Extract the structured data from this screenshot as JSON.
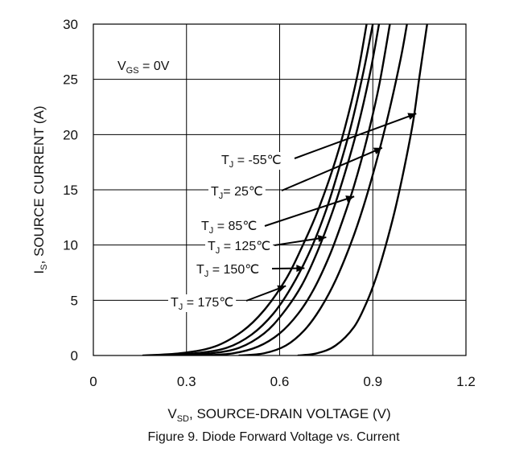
{
  "chart_data": {
    "type": "line",
    "title": "",
    "caption": "Figure 9. Diode Forward Voltage vs. Current",
    "xlabel": {
      "main": "V",
      "sub": "SD",
      "rest": ", SOURCE-DRAIN VOLTAGE (V)"
    },
    "ylabel": {
      "main": "I",
      "sub": "S",
      "rest": ", SOURCE CURRENT (A)"
    },
    "xlim": [
      0,
      1.2
    ],
    "ylim": [
      0,
      30
    ],
    "xticks": [
      "0",
      "0.3",
      "0.6",
      "0.9",
      "1.2"
    ],
    "yticks": [
      "0",
      "5",
      "10",
      "15",
      "20",
      "25",
      "30"
    ],
    "grid": true,
    "condition": {
      "main": "V",
      "sub": "GS",
      "rest": " = 0V"
    },
    "series": [
      {
        "name": "T_J = -55℃",
        "label_parts": {
          "main": "T",
          "sub": "J",
          "rest": " = -55℃"
        },
        "x": [
          0.66,
          0.72,
          0.78,
          0.84,
          0.88,
          0.91,
          0.94,
          0.97,
          1.0,
          1.03,
          1.05,
          1.075
        ],
        "y": [
          0,
          0.2,
          0.9,
          2.6,
          4.8,
          7.0,
          9.8,
          13.0,
          16.8,
          21.2,
          25.2,
          30
        ]
      },
      {
        "name": "T_J= 25℃",
        "label_parts": {
          "main": "T",
          "sub": "J",
          "rest": "= 25℃"
        },
        "x": [
          0.47,
          0.55,
          0.62,
          0.68,
          0.73,
          0.78,
          0.83,
          0.87,
          0.91,
          0.95,
          0.99,
          1.01
        ],
        "y": [
          0,
          0.2,
          0.9,
          2.3,
          4.2,
          6.8,
          10.2,
          13.5,
          17.4,
          21.8,
          26.9,
          30
        ]
      },
      {
        "name": "T_J = 85℃",
        "label_parts": {
          "main": "T",
          "sub": "J",
          "rest": " = 85℃"
        },
        "x": [
          0.35,
          0.45,
          0.53,
          0.6,
          0.66,
          0.71,
          0.76,
          0.8,
          0.84,
          0.88,
          0.92,
          0.955
        ],
        "y": [
          0,
          0.2,
          0.8,
          2.0,
          3.8,
          6.0,
          9.0,
          12.0,
          15.4,
          19.5,
          24.4,
          30
        ]
      },
      {
        "name": "T_J = 125℃",
        "label_parts": {
          "main": "T",
          "sub": "J",
          "rest": " = 125℃"
        },
        "x": [
          0.27,
          0.38,
          0.47,
          0.55,
          0.61,
          0.67,
          0.72,
          0.77,
          0.81,
          0.85,
          0.89,
          0.92
        ],
        "y": [
          0,
          0.2,
          0.7,
          2.0,
          3.8,
          6.3,
          9.3,
          13.0,
          16.5,
          20.5,
          25.4,
          30
        ]
      },
      {
        "name": "T_J = 150℃",
        "label_parts": {
          "main": "T",
          "sub": "J",
          "rest": " = 150℃"
        },
        "x": [
          0.22,
          0.33,
          0.43,
          0.51,
          0.58,
          0.64,
          0.7,
          0.75,
          0.79,
          0.83,
          0.87,
          0.9
        ],
        "y": [
          0,
          0.2,
          0.7,
          1.9,
          3.8,
          6.3,
          9.6,
          13.2,
          16.8,
          20.8,
          25.7,
          30
        ]
      },
      {
        "name": "T_J = 175℃",
        "label_parts": {
          "main": "T",
          "sub": "J",
          "rest": " = 175℃"
        },
        "x": [
          0.16,
          0.28,
          0.39,
          0.48,
          0.55,
          0.62,
          0.67,
          0.72,
          0.77,
          0.81,
          0.85,
          0.88
        ],
        "y": [
          0,
          0.2,
          0.8,
          2.2,
          4.1,
          6.9,
          9.7,
          12.9,
          16.8,
          20.6,
          25.3,
          30
        ]
      }
    ],
    "annotations": [
      {
        "series": 0,
        "tip": [
          1.04,
          21.9
        ],
        "anchor_label": "right"
      },
      {
        "series": 1,
        "tip": [
          0.93,
          18.8
        ],
        "anchor_label": "right"
      },
      {
        "series": 2,
        "tip": [
          0.84,
          14.4
        ],
        "anchor_label": "right"
      },
      {
        "series": 3,
        "tip": [
          0.75,
          10.7
        ],
        "anchor_label": "right"
      },
      {
        "series": 4,
        "tip": [
          0.68,
          7.9
        ],
        "anchor_label": "right"
      },
      {
        "series": 5,
        "tip": [
          0.62,
          6.3
        ],
        "anchor_label": "right"
      }
    ]
  }
}
